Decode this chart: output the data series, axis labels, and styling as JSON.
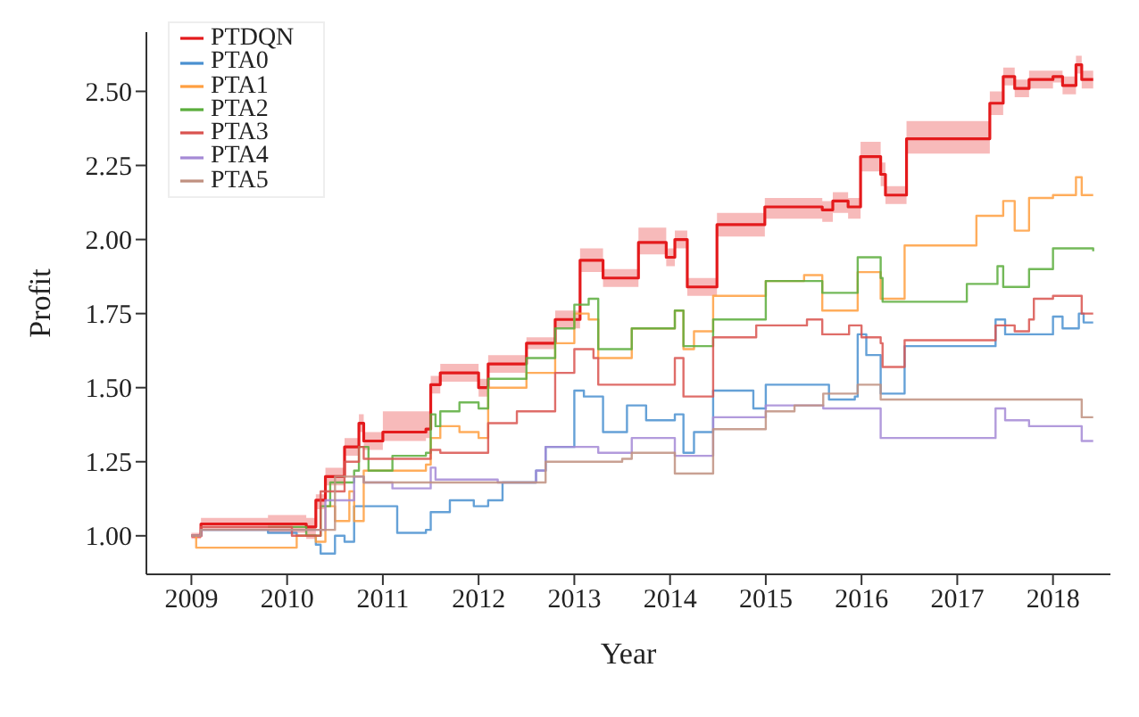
{
  "chart_data": {
    "type": "step",
    "xlabel": "Year",
    "ylabel": "Profit",
    "xlim": [
      2008.53,
      2018.6
    ],
    "ylim": [
      0.87,
      2.7
    ],
    "xticks": [
      2009,
      2010,
      2011,
      2012,
      2013,
      2014,
      2015,
      2016,
      2017,
      2018
    ],
    "yticks": [
      {
        "value": 1,
        "label": "1.00"
      },
      {
        "value": 1.25,
        "label": "1.25"
      },
      {
        "value": 1.5,
        "label": "1.50"
      },
      {
        "value": 1.75,
        "label": "1.75"
      },
      {
        "value": 2,
        "label": "2.00"
      },
      {
        "value": 2.25,
        "label": "2.25"
      },
      {
        "value": 2.5,
        "label": "2.50"
      }
    ],
    "grid": false,
    "legend": "top left",
    "marker": "none",
    "line_style": "solid",
    "series": [
      {
        "name": "PTDQN",
        "color": "#e41a1c",
        "x": [
          2009,
          2009.1,
          2009.8,
          2010.2,
          2010.3,
          2010.4,
          2010.6,
          2010.75,
          2010.8,
          2011,
          2011.45,
          2011.5,
          2011.6,
          2012,
          2012.1,
          2012.5,
          2012.8,
          2013.06,
          2013.3,
          2013.67,
          2013.96,
          2014.05,
          2014.18,
          2014.49,
          2014.99,
          2015.59,
          2015.7,
          2015.86,
          2015.99,
          2016.2,
          2016.25,
          2016.4,
          2016.47,
          2017.1,
          2017.34,
          2017.48,
          2017.6,
          2017.75,
          2018,
          2018.1,
          2018.24,
          2018.3,
          2018.42
        ],
        "values": [
          1,
          1.04,
          1.04,
          1.03,
          1.12,
          1.2,
          1.3,
          1.38,
          1.32,
          1.35,
          1.36,
          1.51,
          1.55,
          1.5,
          1.58,
          1.65,
          1.73,
          1.93,
          1.87,
          1.99,
          1.94,
          2,
          1.84,
          2.05,
          2.11,
          2.1,
          2.13,
          2.11,
          2.28,
          2.22,
          2.15,
          2.15,
          2.34,
          2.34,
          2.46,
          2.55,
          2.51,
          2.54,
          2.55,
          2.52,
          2.59,
          2.54,
          2.54
        ],
        "lower": [
          0.99,
          1.02,
          1.01,
          0.99,
          1.09,
          1.17,
          1.27,
          1.35,
          1.29,
          1.32,
          1.33,
          1.48,
          1.52,
          1.47,
          1.55,
          1.63,
          1.7,
          1.89,
          1.84,
          1.95,
          1.91,
          1.97,
          1.81,
          2.01,
          2.07,
          2.06,
          2.09,
          2.07,
          2.23,
          2.18,
          2.12,
          2.12,
          2.29,
          2.29,
          2.42,
          2.52,
          2.48,
          2.51,
          2.53,
          2.49,
          2.56,
          2.51,
          2.51
        ],
        "upper": [
          1.01,
          1.06,
          1.07,
          1.06,
          1.14,
          1.23,
          1.33,
          1.41,
          1.35,
          1.42,
          1.42,
          1.54,
          1.58,
          1.53,
          1.61,
          1.67,
          1.76,
          1.97,
          1.9,
          2.04,
          1.97,
          2.03,
          1.87,
          2.09,
          2.14,
          2.13,
          2.16,
          2.14,
          2.33,
          2.26,
          2.18,
          2.18,
          2.4,
          2.4,
          2.5,
          2.58,
          2.54,
          2.57,
          2.57,
          2.55,
          2.62,
          2.57,
          2.57
        ]
      },
      {
        "name": "PTA0",
        "color": "#4a90d0",
        "x": [
          2009,
          2009.1,
          2009.8,
          2010.1,
          2010.3,
          2010.35,
          2010.5,
          2010.6,
          2010.7,
          2011.1,
          2011.15,
          2011.45,
          2011.5,
          2011.7,
          2011.95,
          2012.1,
          2012.25,
          2012.6,
          2012.7,
          2013,
          2013.1,
          2013.3,
          2013.55,
          2013.75,
          2014.05,
          2014.14,
          2014.25,
          2014.45,
          2014.87,
          2015,
          2015.53,
          2015.66,
          2015.93,
          2015.96,
          2016.05,
          2016.2,
          2016.45,
          2017.15,
          2017.4,
          2017.5,
          2017.75,
          2018,
          2018.1,
          2018.27,
          2018.32,
          2018.42
        ],
        "values": [
          1,
          1.02,
          1.01,
          1,
          0.97,
          0.94,
          1,
          0.98,
          1.1,
          1.1,
          1.01,
          1.02,
          1.08,
          1.12,
          1.1,
          1.12,
          1.18,
          1.22,
          1.3,
          1.49,
          1.47,
          1.35,
          1.44,
          1.39,
          1.41,
          1.28,
          1.35,
          1.49,
          1.43,
          1.51,
          1.51,
          1.46,
          1.47,
          1.68,
          1.61,
          1.48,
          1.64,
          1.64,
          1.73,
          1.68,
          1.68,
          1.74,
          1.7,
          1.75,
          1.72,
          1.72
        ]
      },
      {
        "name": "PTA1",
        "color": "#ff9f40",
        "x": [
          2009,
          2009.05,
          2009.85,
          2010.1,
          2010.3,
          2010.4,
          2010.5,
          2010.65,
          2010.7,
          2010.8,
          2011,
          2011.45,
          2011.5,
          2011.6,
          2011.8,
          2012,
          2012.1,
          2012.5,
          2012.8,
          2013,
          2013.15,
          2013.25,
          2013.6,
          2014.05,
          2014.14,
          2014.25,
          2014.45,
          2015,
          2015.4,
          2015.59,
          2015.96,
          2016.2,
          2016.45,
          2017.1,
          2017.2,
          2017.48,
          2017.6,
          2017.75,
          2018,
          2018.24,
          2018.3,
          2018.42
        ],
        "values": [
          1,
          0.96,
          0.96,
          1,
          0.98,
          1.1,
          1.05,
          1.15,
          1.05,
          1.22,
          1.22,
          1.24,
          1.33,
          1.37,
          1.35,
          1.33,
          1.5,
          1.55,
          1.65,
          1.75,
          1.73,
          1.6,
          1.7,
          1.76,
          1.63,
          1.69,
          1.81,
          1.86,
          1.88,
          1.76,
          1.89,
          1.8,
          1.98,
          1.98,
          2.08,
          2.13,
          2.03,
          2.14,
          2.15,
          2.21,
          2.15,
          2.15
        ]
      },
      {
        "name": "PTA2",
        "color": "#5aad3c",
        "x": [
          2009.8,
          2010.2,
          2010.35,
          2010.45,
          2010.7,
          2010.75,
          2010.85,
          2011.1,
          2011.45,
          2011.5,
          2011.55,
          2011.6,
          2011.8,
          2012,
          2012.1,
          2012.5,
          2012.8,
          2013,
          2013.15,
          2013.25,
          2013.6,
          2014.05,
          2014.14,
          2014.45,
          2015,
          2015.43,
          2015.59,
          2015.96,
          2016.2,
          2016.22,
          2017.1,
          2017.35,
          2017.42,
          2017.48,
          2017.75,
          2018,
          2018.42
        ],
        "values": [
          1.03,
          1,
          1.1,
          1.18,
          1.22,
          1.3,
          1.22,
          1.27,
          1.28,
          1.41,
          1.37,
          1.42,
          1.45,
          1.43,
          1.53,
          1.6,
          1.7,
          1.78,
          1.8,
          1.63,
          1.7,
          1.76,
          1.64,
          1.73,
          1.86,
          1.86,
          1.82,
          1.94,
          1.87,
          1.79,
          1.85,
          1.85,
          1.91,
          1.84,
          1.9,
          1.97,
          1.96
        ]
      },
      {
        "name": "PTA3",
        "color": "#d9534f",
        "x": [
          2009,
          2009.1,
          2009.8,
          2010.05,
          2010.35,
          2010.6,
          2010.75,
          2010.8,
          2011.45,
          2011.5,
          2011.6,
          2012,
          2012.1,
          2012.4,
          2012.8,
          2013,
          2013.2,
          2013.25,
          2014.05,
          2014.14,
          2014.45,
          2014.9,
          2015.43,
          2015.59,
          2015.87,
          2016,
          2016.2,
          2016.22,
          2016.45,
          2017.15,
          2017.4,
          2017.6,
          2017.75,
          2017.8,
          2018,
          2018.3,
          2018.42
        ],
        "values": [
          1,
          1.03,
          1.03,
          1,
          1.15,
          1.25,
          1.3,
          1.26,
          1.26,
          1.29,
          1.28,
          1.28,
          1.38,
          1.42,
          1.55,
          1.63,
          1.6,
          1.51,
          1.6,
          1.47,
          1.67,
          1.71,
          1.73,
          1.68,
          1.71,
          1.67,
          1.65,
          1.57,
          1.66,
          1.66,
          1.71,
          1.69,
          1.73,
          1.8,
          1.81,
          1.75,
          1.75
        ]
      },
      {
        "name": "PTA4",
        "color": "#a58ad6",
        "x": [
          2009,
          2009.1,
          2010.2,
          2010.4,
          2010.7,
          2010.8,
          2011.1,
          2011.5,
          2011.55,
          2012.2,
          2012.6,
          2012.7,
          2013.25,
          2013.6,
          2014.05,
          2014.45,
          2015,
          2015.6,
          2016.2,
          2017.3,
          2017.4,
          2017.5,
          2017.75,
          2018.3,
          2018.42
        ],
        "values": [
          1,
          1.02,
          1.02,
          1.12,
          1.2,
          1.18,
          1.16,
          1.23,
          1.19,
          1.18,
          1.22,
          1.3,
          1.28,
          1.33,
          1.27,
          1.4,
          1.44,
          1.43,
          1.33,
          1.33,
          1.43,
          1.39,
          1.37,
          1.32,
          1.32
        ]
      },
      {
        "name": "PTA5",
        "color": "#c09080",
        "x": [
          2009,
          2009.1,
          2010.2,
          2010.5,
          2010.8,
          2012.7,
          2013.5,
          2013.6,
          2014.05,
          2014.45,
          2015,
          2015.3,
          2015.6,
          2015.96,
          2016.2,
          2018.3,
          2018.42
        ],
        "values": [
          1,
          1.02,
          1.02,
          1.2,
          1.18,
          1.25,
          1.26,
          1.28,
          1.21,
          1.36,
          1.42,
          1.44,
          1.48,
          1.51,
          1.46,
          1.4,
          1.4
        ]
      }
    ]
  }
}
